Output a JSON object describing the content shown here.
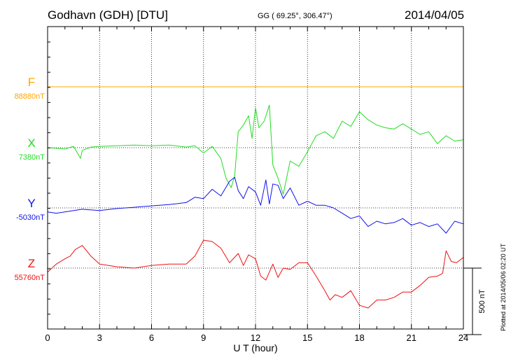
{
  "header": {
    "station": "Godhavn (GDH)  [DTU]",
    "coords": "GG ( 69.25°, 306.47°)",
    "date": "2014/04/05"
  },
  "credit": "Plotted at 2014/05/06 02:20 UT",
  "chart_data": {
    "type": "line",
    "title": "Godhavn (GDH)  [DTU]",
    "xlabel": "U T (hour)",
    "xlim": [
      0,
      24
    ],
    "xticks": [
      0,
      3,
      6,
      9,
      12,
      15,
      18,
      21,
      24
    ],
    "grid": true,
    "scale_bar": {
      "label": "500 nT",
      "value_nT": 500
    },
    "series": [
      {
        "name": "F",
        "baseline_label": "88880nT",
        "color": "#FFA500",
        "x": [
          0,
          24
        ],
        "y": [
          88880,
          88880
        ]
      },
      {
        "name": "X",
        "baseline_label": "7380nT",
        "color": "#22DD22",
        "x": [
          0,
          0.5,
          1,
          1.5,
          1.9,
          2,
          2.5,
          3,
          4,
          5,
          6,
          7,
          8,
          8.5,
          9,
          9.5,
          10,
          10.3,
          10.6,
          10.8,
          11,
          11.3,
          11.6,
          11.8,
          12,
          12.2,
          12.5,
          12.8,
          13,
          13.3,
          13.6,
          14,
          14.5,
          15,
          15.5,
          16,
          16.5,
          17,
          17.5,
          18,
          18.5,
          19,
          19.5,
          20,
          20.5,
          21,
          21.5,
          22,
          22.5,
          23,
          23.5,
          24
        ],
        "y": [
          7380,
          7375,
          7370,
          7390,
          7300,
          7360,
          7385,
          7390,
          7395,
          7400,
          7395,
          7400,
          7385,
          7395,
          7340,
          7390,
          7300,
          7150,
          7080,
          7170,
          7500,
          7550,
          7620,
          7450,
          7680,
          7530,
          7580,
          7700,
          7250,
          7150,
          7030,
          7280,
          7240,
          7350,
          7470,
          7500,
          7450,
          7580,
          7540,
          7650,
          7590,
          7550,
          7530,
          7520,
          7560,
          7520,
          7480,
          7500,
          7410,
          7470,
          7430,
          7440
        ]
      },
      {
        "name": "Y",
        "baseline_label": "-5030nT",
        "color": "#1111EE",
        "x": [
          0,
          0.5,
          1,
          2,
          3,
          4,
          5,
          6,
          7,
          8,
          8.5,
          9,
          9.5,
          10,
          10.5,
          10.8,
          11,
          11.3,
          11.6,
          12,
          12.3,
          12.6,
          12.8,
          13,
          13.3,
          13.6,
          14,
          14.5,
          15,
          15.5,
          16,
          16.5,
          17,
          17.5,
          18,
          18.5,
          19,
          19.5,
          20,
          20.5,
          21,
          21.5,
          22,
          22.5,
          23,
          23.5,
          24
        ],
        "y": [
          -5060,
          -5070,
          -5060,
          -5040,
          -5050,
          -5035,
          -5025,
          -5015,
          -5005,
          -4990,
          -4950,
          -4960,
          -4890,
          -4940,
          -4830,
          -4800,
          -4900,
          -4960,
          -4870,
          -4910,
          -5010,
          -4820,
          -5000,
          -4850,
          -4860,
          -4960,
          -4880,
          -5010,
          -4980,
          -5010,
          -5010,
          -5030,
          -5070,
          -5110,
          -5090,
          -5170,
          -5130,
          -5150,
          -5140,
          -5110,
          -5160,
          -5140,
          -5170,
          -5150,
          -5220,
          -5130,
          -5150
        ]
      },
      {
        "name": "Z",
        "baseline_label": "55760nT",
        "color": "#EE1111",
        "x": [
          0,
          0.5,
          1,
          1.3,
          1.6,
          2,
          2.5,
          3,
          4,
          5,
          6,
          7,
          8,
          8.5,
          9,
          9.5,
          10,
          10.5,
          11,
          11.3,
          11.6,
          12,
          12.3,
          12.6,
          13,
          13.3,
          13.6,
          14,
          14.5,
          15,
          15.5,
          16,
          16.3,
          16.6,
          17,
          17.5,
          18,
          18.5,
          19,
          19.5,
          20,
          20.5,
          21,
          21.5,
          22,
          22.5,
          22.8,
          23,
          23.3,
          23.6,
          24
        ],
        "y": [
          55730,
          55790,
          55830,
          55850,
          55900,
          55930,
          55850,
          55790,
          55770,
          55760,
          55780,
          55790,
          55790,
          55850,
          55970,
          55960,
          55910,
          55800,
          55870,
          55780,
          55860,
          55830,
          55700,
          55670,
          55790,
          55690,
          55760,
          55750,
          55800,
          55800,
          55700,
          55590,
          55520,
          55560,
          55540,
          55590,
          55480,
          55460,
          55520,
          55520,
          55540,
          55580,
          55580,
          55630,
          55690,
          55700,
          55720,
          55890,
          55810,
          55800,
          55840
        ]
      }
    ]
  }
}
